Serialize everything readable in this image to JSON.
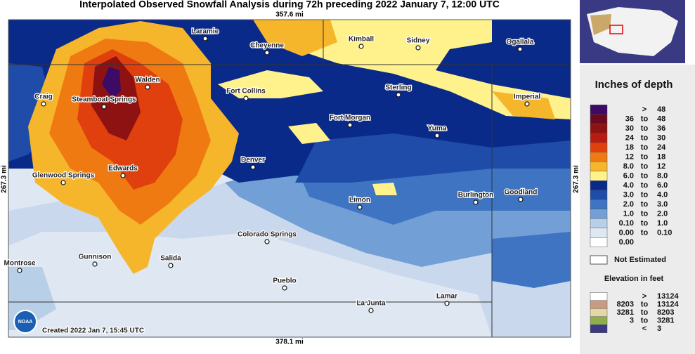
{
  "title": "Interpolated Observed Snowfall Analysis during 72h preceding 2022 January 7, 12:00 UTC",
  "map": {
    "top_distance": "357.6 mi",
    "bottom_distance": "378.1 mi",
    "left_distance": "267.3 mi",
    "right_distance": "267.3 mi",
    "credit": "Created 2022 Jan 7, 15:45 UTC",
    "logo": "NOAA",
    "cities": [
      "Laramie",
      "Cheyenne",
      "Kimball",
      "Sidney",
      "Ogallala",
      "Walden",
      "Craig",
      "Steamboat Springs",
      "Fort Collins",
      "Sterling",
      "Imperial",
      "Fort Morgan",
      "Yuma",
      "Denver",
      "Edwards",
      "Glenwood Springs",
      "Limon",
      "Burlington",
      "Goodland",
      "Colorado Springs",
      "Montrose",
      "Gunnison",
      "Salida",
      "Pueblo",
      "La Junta",
      "Lamar"
    ]
  },
  "legend": {
    "title": "Inches of depth",
    "rows": [
      {
        "color": "#3d0a66",
        "sep": ">",
        "high": "48"
      },
      {
        "color": "#6a0a1e",
        "low": "36",
        "sep": "to",
        "high": "48"
      },
      {
        "color": "#8e1212",
        "low": "30",
        "sep": "to",
        "high": "36"
      },
      {
        "color": "#b81c10",
        "low": "24",
        "sep": "to",
        "high": "30"
      },
      {
        "color": "#e0400e",
        "low": "18",
        "sep": "to",
        "high": "24"
      },
      {
        "color": "#f07a12",
        "low": "12",
        "sep": "to",
        "high": "18"
      },
      {
        "color": "#f6b62c",
        "low": "8.0",
        "sep": "to",
        "high": "12"
      },
      {
        "color": "#fff28c",
        "low": "6.0",
        "sep": "to",
        "high": "8.0"
      },
      {
        "color": "#0a2a8a",
        "low": "4.0",
        "sep": "to",
        "high": "6.0"
      },
      {
        "color": "#1e4ca8",
        "low": "3.0",
        "sep": "to",
        "high": "4.0"
      },
      {
        "color": "#3e74c2",
        "low": "2.0",
        "sep": "to",
        "high": "3.0"
      },
      {
        "color": "#72a0d6",
        "low": "1.0",
        "sep": "to",
        "high": "2.0"
      },
      {
        "color": "#b8cfe8",
        "low": "0.10",
        "sep": "to",
        "high": "1.0"
      },
      {
        "color": "#dfe8f2",
        "low": "0.00",
        "sep": "to",
        "high": "0.10"
      },
      {
        "color": "#ffffff",
        "low": "0.00"
      }
    ],
    "not_estimated": {
      "color": "#ffffff",
      "label": "Not Estimated"
    },
    "elevation_title": "Elevation in feet",
    "elevation_rows": [
      {
        "color": "#ffffff",
        "sep": ">",
        "high": "13124"
      },
      {
        "color": "#c89a84",
        "low": "8203",
        "sep": "to",
        "high": "13124"
      },
      {
        "color": "#e6d6a6",
        "low": "3281",
        "sep": "to",
        "high": "8203"
      },
      {
        "color": "#8eae4e",
        "low": "3",
        "sep": "to",
        "high": "3281"
      },
      {
        "color": "#3a3a84",
        "sep": "<",
        "high": "3"
      }
    ]
  }
}
